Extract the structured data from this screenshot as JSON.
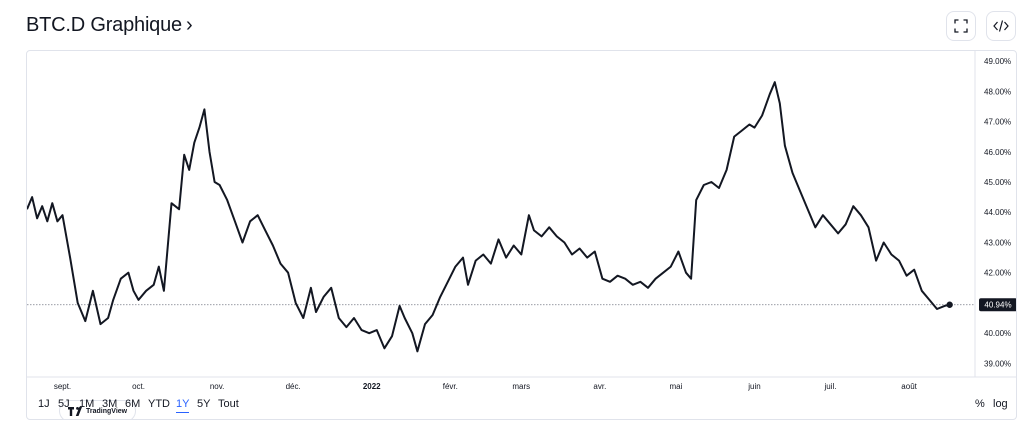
{
  "header": {
    "title": "BTC.D Graphique",
    "chevron": "›",
    "fullscreen_icon": "fullscreen-icon",
    "embed_icon": "code-icon"
  },
  "watermark": {
    "text": "TradingView",
    "icon": "tradingview-logo-icon"
  },
  "ranges": [
    "1J",
    "5J",
    "1M",
    "3M",
    "6M",
    "YTD",
    "1Y",
    "5Y",
    "Tout"
  ],
  "active_range": "1Y",
  "scale_options": {
    "percent": "%",
    "log": "log"
  },
  "colors": {
    "line": "#131722",
    "grid_text": "#131722",
    "active": "#2962ff",
    "price_tag_bg": "#131722"
  },
  "chart_data": {
    "type": "line",
    "title": "BTC.D",
    "ylim": [
      38.55,
      49.2
    ],
    "y_ticks": [
      "49.00%",
      "48.00%",
      "47.00%",
      "46.00%",
      "45.00%",
      "44.00%",
      "43.00%",
      "42.00%",
      "40.00%",
      "39.00%"
    ],
    "y_tick_values": [
      49,
      48,
      47,
      46,
      45,
      44,
      43,
      42,
      40,
      39
    ],
    "x_ticks": [
      {
        "label": "sept.",
        "date": "2021-09-01",
        "bold": false
      },
      {
        "label": "oct.",
        "date": "2021-10-01",
        "bold": false
      },
      {
        "label": "nov.",
        "date": "2021-11-01",
        "bold": false
      },
      {
        "label": "déc.",
        "date": "2021-12-01",
        "bold": false
      },
      {
        "label": "2022",
        "date": "2022-01-01",
        "bold": true
      },
      {
        "label": "févr.",
        "date": "2022-02-01",
        "bold": false
      },
      {
        "label": "mars",
        "date": "2022-03-01",
        "bold": false
      },
      {
        "label": "avr.",
        "date": "2022-04-01",
        "bold": false
      },
      {
        "label": "mai",
        "date": "2022-05-01",
        "bold": false
      },
      {
        "label": "juin",
        "date": "2022-06-01",
        "bold": false
      },
      {
        "label": "juil.",
        "date": "2022-07-01",
        "bold": false
      },
      {
        "label": "août",
        "date": "2022-08-01",
        "bold": false
      }
    ],
    "x_range": [
      "2021-08-18",
      "2022-08-27"
    ],
    "last_value": 40.94,
    "last_label": "40.94%",
    "grid": false,
    "series": [
      {
        "values": [
          [
            "2021-08-18",
            44.1
          ],
          [
            "2021-08-20",
            44.5
          ],
          [
            "2021-08-22",
            43.8
          ],
          [
            "2021-08-24",
            44.2
          ],
          [
            "2021-08-26",
            43.7
          ],
          [
            "2021-08-28",
            44.3
          ],
          [
            "2021-08-30",
            43.7
          ],
          [
            "2021-09-01",
            43.9
          ],
          [
            "2021-09-04",
            42.5
          ],
          [
            "2021-09-07",
            41.0
          ],
          [
            "2021-09-10",
            40.4
          ],
          [
            "2021-09-13",
            41.4
          ],
          [
            "2021-09-16",
            40.3
          ],
          [
            "2021-09-19",
            40.5
          ],
          [
            "2021-09-21",
            41.1
          ],
          [
            "2021-09-24",
            41.8
          ],
          [
            "2021-09-27",
            42.0
          ],
          [
            "2021-09-29",
            41.4
          ],
          [
            "2021-10-01",
            41.1
          ],
          [
            "2021-10-04",
            41.4
          ],
          [
            "2021-10-07",
            41.6
          ],
          [
            "2021-10-09",
            42.2
          ],
          [
            "2021-10-11",
            41.4
          ],
          [
            "2021-10-14",
            44.3
          ],
          [
            "2021-10-17",
            44.1
          ],
          [
            "2021-10-19",
            45.9
          ],
          [
            "2021-10-21",
            45.4
          ],
          [
            "2021-10-23",
            46.3
          ],
          [
            "2021-10-25",
            46.8
          ],
          [
            "2021-10-27",
            47.4
          ],
          [
            "2021-10-29",
            46.0
          ],
          [
            "2021-10-31",
            45.0
          ],
          [
            "2021-11-02",
            44.9
          ],
          [
            "2021-11-05",
            44.4
          ],
          [
            "2021-11-08",
            43.7
          ],
          [
            "2021-11-11",
            43.0
          ],
          [
            "2021-11-14",
            43.7
          ],
          [
            "2021-11-17",
            43.9
          ],
          [
            "2021-11-20",
            43.4
          ],
          [
            "2021-11-23",
            42.9
          ],
          [
            "2021-11-26",
            42.3
          ],
          [
            "2021-11-29",
            42.0
          ],
          [
            "2021-12-02",
            41.0
          ],
          [
            "2021-12-05",
            40.5
          ],
          [
            "2021-12-08",
            41.5
          ],
          [
            "2021-12-10",
            40.7
          ],
          [
            "2021-12-13",
            41.2
          ],
          [
            "2021-12-16",
            41.5
          ],
          [
            "2021-12-19",
            40.5
          ],
          [
            "2021-12-22",
            40.2
          ],
          [
            "2021-12-25",
            40.5
          ],
          [
            "2021-12-28",
            40.1
          ],
          [
            "2021-12-31",
            40.0
          ],
          [
            "2022-01-03",
            40.1
          ],
          [
            "2022-01-06",
            39.5
          ],
          [
            "2022-01-09",
            39.9
          ],
          [
            "2022-01-12",
            40.9
          ],
          [
            "2022-01-14",
            40.5
          ],
          [
            "2022-01-17",
            40.0
          ],
          [
            "2022-01-19",
            39.4
          ],
          [
            "2022-01-22",
            40.3
          ],
          [
            "2022-01-25",
            40.6
          ],
          [
            "2022-01-28",
            41.2
          ],
          [
            "2022-01-31",
            41.7
          ],
          [
            "2022-02-03",
            42.2
          ],
          [
            "2022-02-06",
            42.5
          ],
          [
            "2022-02-08",
            41.6
          ],
          [
            "2022-02-11",
            42.4
          ],
          [
            "2022-02-14",
            42.6
          ],
          [
            "2022-02-17",
            42.3
          ],
          [
            "2022-02-20",
            43.1
          ],
          [
            "2022-02-23",
            42.5
          ],
          [
            "2022-02-26",
            42.9
          ],
          [
            "2022-03-01",
            42.6
          ],
          [
            "2022-03-04",
            43.9
          ],
          [
            "2022-03-06",
            43.4
          ],
          [
            "2022-03-09",
            43.2
          ],
          [
            "2022-03-12",
            43.5
          ],
          [
            "2022-03-15",
            43.2
          ],
          [
            "2022-03-18",
            43.0
          ],
          [
            "2022-03-21",
            42.6
          ],
          [
            "2022-03-24",
            42.8
          ],
          [
            "2022-03-27",
            42.5
          ],
          [
            "2022-03-30",
            42.7
          ],
          [
            "2022-04-02",
            41.8
          ],
          [
            "2022-04-05",
            41.7
          ],
          [
            "2022-04-08",
            41.9
          ],
          [
            "2022-04-11",
            41.8
          ],
          [
            "2022-04-14",
            41.6
          ],
          [
            "2022-04-17",
            41.7
          ],
          [
            "2022-04-20",
            41.5
          ],
          [
            "2022-04-23",
            41.8
          ],
          [
            "2022-04-26",
            42.0
          ],
          [
            "2022-04-29",
            42.2
          ],
          [
            "2022-05-02",
            42.7
          ],
          [
            "2022-05-05",
            42.0
          ],
          [
            "2022-05-07",
            41.8
          ],
          [
            "2022-05-09",
            44.4
          ],
          [
            "2022-05-12",
            44.9
          ],
          [
            "2022-05-15",
            45.0
          ],
          [
            "2022-05-18",
            44.8
          ],
          [
            "2022-05-21",
            45.4
          ],
          [
            "2022-05-24",
            46.5
          ],
          [
            "2022-05-27",
            46.7
          ],
          [
            "2022-05-30",
            46.9
          ],
          [
            "2022-06-01",
            46.8
          ],
          [
            "2022-06-04",
            47.2
          ],
          [
            "2022-06-07",
            47.9
          ],
          [
            "2022-06-09",
            48.3
          ],
          [
            "2022-06-11",
            47.6
          ],
          [
            "2022-06-13",
            46.2
          ],
          [
            "2022-06-16",
            45.3
          ],
          [
            "2022-06-19",
            44.7
          ],
          [
            "2022-06-22",
            44.1
          ],
          [
            "2022-06-25",
            43.5
          ],
          [
            "2022-06-28",
            43.9
          ],
          [
            "2022-07-01",
            43.6
          ],
          [
            "2022-07-04",
            43.3
          ],
          [
            "2022-07-07",
            43.6
          ],
          [
            "2022-07-10",
            44.2
          ],
          [
            "2022-07-13",
            43.9
          ],
          [
            "2022-07-16",
            43.5
          ],
          [
            "2022-07-19",
            42.4
          ],
          [
            "2022-07-22",
            43.0
          ],
          [
            "2022-07-25",
            42.6
          ],
          [
            "2022-07-28",
            42.4
          ],
          [
            "2022-07-31",
            41.9
          ],
          [
            "2022-08-03",
            42.1
          ],
          [
            "2022-08-06",
            41.4
          ],
          [
            "2022-08-09",
            41.1
          ],
          [
            "2022-08-12",
            40.8
          ],
          [
            "2022-08-15",
            40.9
          ],
          [
            "2022-08-17",
            40.94
          ]
        ]
      }
    ]
  }
}
